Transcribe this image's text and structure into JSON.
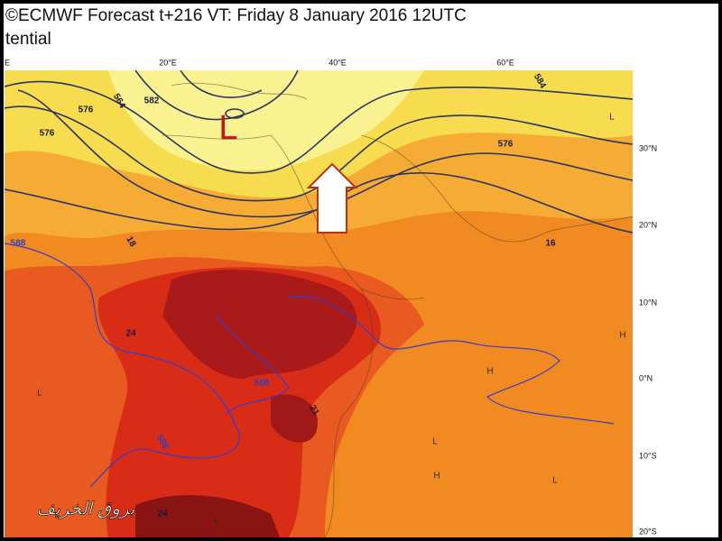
{
  "header": {
    "title": "©ECMWF Forecast t+216 VT: Friday 8 January 2016 12UTC",
    "subtitle": "tential"
  },
  "map": {
    "longitude_labels": [
      "E",
      "20°E",
      "40°E",
      "60°E"
    ],
    "latitude_labels": [
      "30°N",
      "20°N",
      "10°N",
      "0°N",
      "10°S",
      "20°S"
    ],
    "low_marker": "L",
    "contour_labels": [
      "576",
      "584",
      "582",
      "576",
      "564",
      "576",
      "16",
      "18",
      "588",
      "24",
      "21",
      "24",
      "588",
      "588"
    ],
    "pressure_labels": [
      "L",
      "L",
      "H",
      "H",
      "L",
      "H",
      "L",
      "L"
    ]
  },
  "watermark": "بروق الخريف"
}
